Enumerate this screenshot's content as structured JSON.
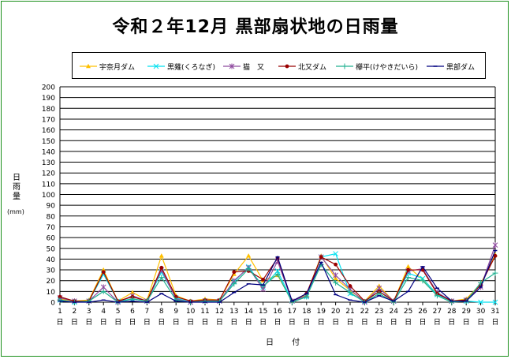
{
  "title": "令和２年12月 黒部扇状地の日雨量",
  "chart_data": {
    "type": "line",
    "title": "令和２年12月 黒部扇状地の日雨量",
    "ylabel": "日雨量",
    "yunit": "(mm)",
    "xlabel": "日 付",
    "ylim": [
      0,
      200
    ],
    "ystep": 10,
    "grid": true,
    "legend_position": "top",
    "x": [
      "1",
      "2",
      "3",
      "4",
      "5",
      "6",
      "7",
      "8",
      "9",
      "10",
      "11",
      "12",
      "13",
      "14",
      "15",
      "16",
      "17",
      "18",
      "19",
      "20",
      "21",
      "22",
      "23",
      "24",
      "25",
      "26",
      "27",
      "28",
      "29",
      "30",
      "31"
    ],
    "x_suffix": "日",
    "series": [
      {
        "name": "宇奈月ダム",
        "color": "#ffc000",
        "marker": "triangle",
        "values": [
          3,
          1,
          2,
          30,
          1,
          9,
          2,
          43,
          6,
          1,
          3,
          2,
          26,
          43,
          20,
          25,
          1,
          7,
          43,
          22,
          11,
          1,
          15,
          1,
          33,
          21,
          8,
          1,
          3,
          17,
          44
        ]
      },
      {
        "name": "黒薙(くろなぎ)",
        "color": "#00e0f0",
        "marker": "x",
        "values": [
          2,
          0,
          1,
          26,
          1,
          3,
          1,
          28,
          4,
          0,
          1,
          1,
          19,
          33,
          14,
          29,
          1,
          5,
          42,
          45,
          8,
          1,
          10,
          1,
          27,
          22,
          7,
          1,
          1,
          0,
          0
        ]
      },
      {
        "name": "猫　又",
        "color": "#8e4a9e",
        "marker": "star",
        "values": [
          4,
          1,
          1,
          14,
          0,
          6,
          1,
          30,
          3,
          0,
          1,
          1,
          20,
          32,
          12,
          38,
          1,
          6,
          42,
          25,
          12,
          0,
          13,
          1,
          29,
          31,
          9,
          1,
          2,
          14,
          53
        ]
      },
      {
        "name": "北又ダム",
        "color": "#990000",
        "marker": "dot",
        "values": [
          5,
          1,
          1,
          28,
          1,
          5,
          1,
          32,
          5,
          1,
          2,
          2,
          28,
          29,
          21,
          41,
          1,
          8,
          42,
          35,
          15,
          1,
          10,
          1,
          30,
          30,
          8,
          1,
          2,
          16,
          43
        ]
      },
      {
        "name": "欅平(けやきだいら)",
        "color": "#20b090",
        "marker": "plus",
        "values": [
          2,
          0,
          1,
          10,
          0,
          3,
          1,
          23,
          2,
          0,
          1,
          1,
          17,
          31,
          15,
          26,
          0,
          5,
          35,
          18,
          9,
          0,
          8,
          0,
          23,
          20,
          6,
          0,
          1,
          18,
          27
        ]
      },
      {
        "name": "黒部ダム",
        "color": "#000080",
        "marker": "dash",
        "values": [
          1,
          0,
          0,
          2,
          0,
          1,
          0,
          8,
          1,
          0,
          0,
          0,
          9,
          17,
          16,
          42,
          1,
          8,
          37,
          7,
          2,
          0,
          6,
          1,
          10,
          33,
          13,
          1,
          1,
          14,
          48
        ]
      }
    ]
  }
}
